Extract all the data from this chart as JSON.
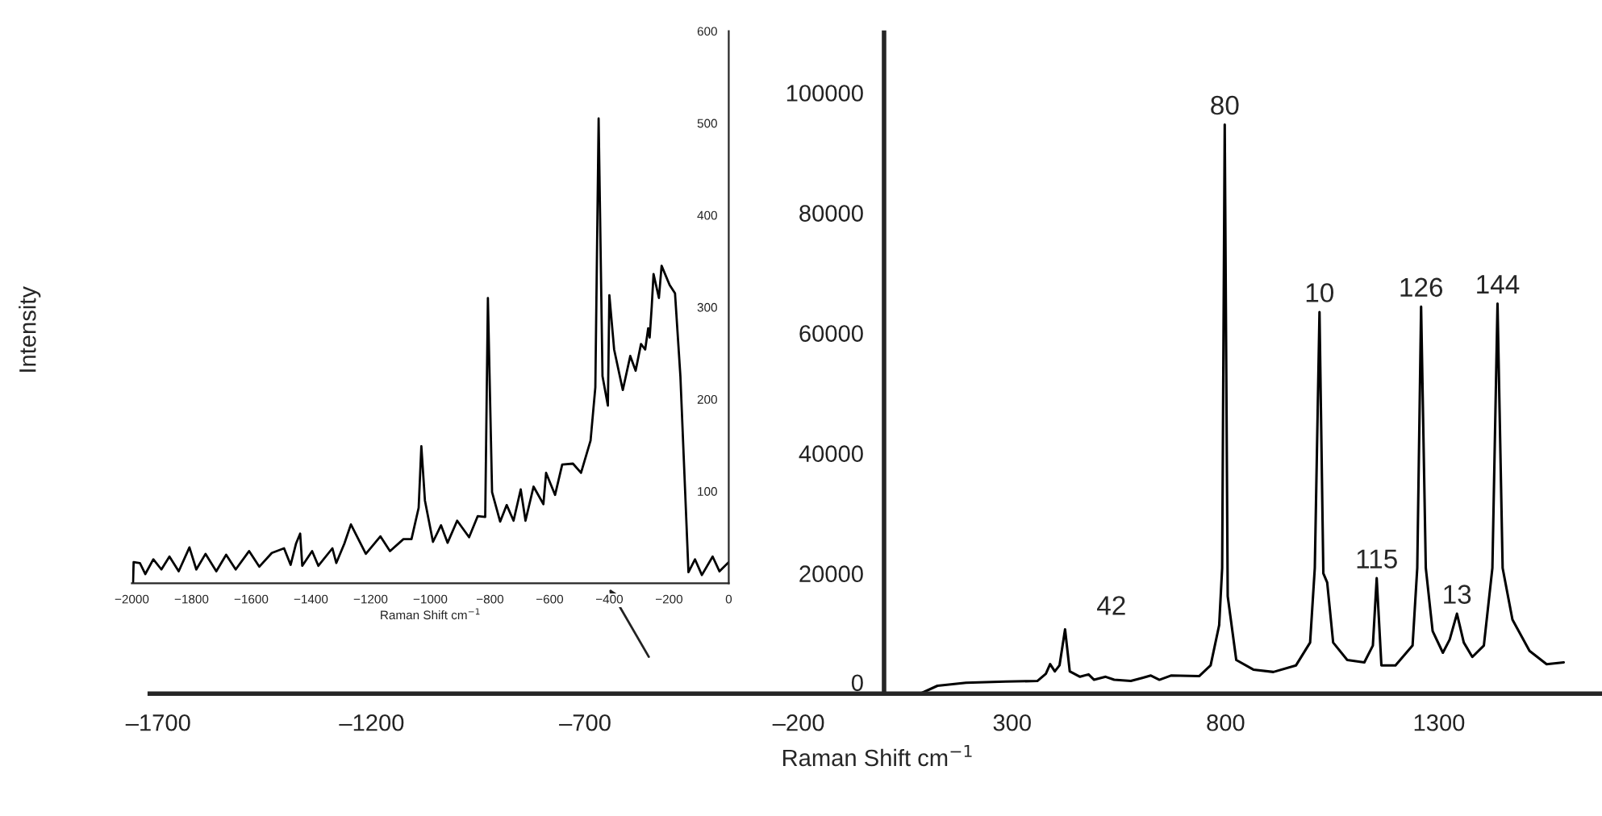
{
  "chart_data": [
    {
      "type": "line",
      "xlabel": "Raman Shift cm$^{−1}$",
      "ylabel": "Intensity",
      "xlim": [
        -1720,
        1690
      ],
      "ylim": [
        0,
        110000
      ],
      "xticks": [
        {
          "value": -1700,
          "label": "–1700"
        },
        {
          "value": -1200,
          "label": "–1200"
        },
        {
          "value": -700,
          "label": "–700"
        },
        {
          "value": -200,
          "label": "–200"
        },
        300,
        800,
        1300
      ],
      "yticks": [
        0,
        20000,
        40000,
        60000,
        80000,
        100000
      ],
      "grid": false,
      "marker": "none",
      "line_style": "solid",
      "series": [
        {
          "color": "#000000",
          "x": [
            85,
            125,
            192,
            285,
            359,
            379,
            389,
            400,
            411,
            424,
            435,
            459,
            479,
            492,
            519,
            539,
            578,
            605,
            625,
            645,
            672,
            738,
            765,
            785,
            792,
            798,
            805,
            825,
            865,
            912,
            965,
            998,
            1009,
            1020,
            1029,
            1038,
            1052,
            1085,
            1125,
            1145,
            1154,
            1165,
            1198,
            1238,
            1249,
            1258,
            1269,
            1285,
            1309,
            1325,
            1342,
            1358,
            1378,
            1405,
            1425,
            1437,
            1449,
            1472,
            1512,
            1552,
            1592
          ],
          "values": [
            0,
            1300,
            1800,
            2000,
            2100,
            3300,
            4900,
            3700,
            4700,
            10700,
            3700,
            2800,
            3200,
            2300,
            2800,
            2300,
            2100,
            2600,
            3000,
            2300,
            3000,
            2900,
            4700,
            11400,
            20900,
            94700,
            16200,
            5600,
            4000,
            3600,
            4700,
            8500,
            20900,
            63500,
            20000,
            18500,
            8500,
            5600,
            5200,
            8000,
            19200,
            4700,
            4700,
            8000,
            20900,
            64400,
            20900,
            10400,
            6800,
            9000,
            13300,
            8500,
            6100,
            8000,
            20900,
            64900,
            20900,
            12300,
            7100,
            4900,
            5200
          ]
        }
      ],
      "annotations": [
        {
          "text": "42",
          "x": 424,
          "y": 10700
        },
        {
          "text": "80",
          "x": 798,
          "y": 94700
        },
        {
          "text": "10",
          "x": 1020,
          "y": 63500
        },
        {
          "text": "115",
          "x": 1154,
          "y": 19200
        },
        {
          "text": "126",
          "x": 1258,
          "y": 64400
        },
        {
          "text": "13",
          "x": 1342,
          "y": 13300
        },
        {
          "text": "144",
          "x": 1437,
          "y": 64900
        }
      ]
    },
    {
      "type": "line",
      "xlabel": "Raman Shift cm$^{−1}$",
      "xlim": [
        -2000,
        0
      ],
      "ylim": [
        0,
        600
      ],
      "xticks": [
        {
          "value": -2000,
          "label": "−2000"
        },
        {
          "value": -1800,
          "label": "−1800"
        },
        {
          "value": -1600,
          "label": "−1600"
        },
        {
          "value": -1400,
          "label": "−1400"
        },
        {
          "value": -1200,
          "label": "−1200"
        },
        {
          "value": -1000,
          "label": "−1000"
        },
        {
          "value": -800,
          "label": "−800"
        },
        {
          "value": -600,
          "label": "−600"
        },
        {
          "value": -400,
          "label": "−400"
        },
        {
          "value": -200,
          "label": "−200"
        },
        0
      ],
      "yticks": [
        100,
        200,
        300,
        400,
        500,
        600
      ],
      "grid": false,
      "marker": "none",
      "line_style": "solid",
      "series": [
        {
          "color": "#000000",
          "x": [
            -1996,
            -1994,
            -1973,
            -1955,
            -1928,
            -1901,
            -1874,
            -1843,
            -1807,
            -1784,
            -1753,
            -1717,
            -1684,
            -1652,
            -1607,
            -1573,
            -1531,
            -1490,
            -1468,
            -1450,
            -1436,
            -1429,
            -1396,
            -1375,
            -1328,
            -1315,
            -1288,
            -1266,
            -1216,
            -1167,
            -1135,
            -1090,
            -1063,
            -1039,
            -1030,
            -1018,
            -991,
            -964,
            -942,
            -910,
            -870,
            -841,
            -816,
            -807,
            -793,
            -766,
            -744,
            -721,
            -697,
            -681,
            -654,
            -621,
            -612,
            -582,
            -558,
            -522,
            -495,
            -463,
            -447,
            -436,
            -423,
            -405,
            -400,
            -384,
            -355,
            -330,
            -312,
            -294,
            -280,
            -270,
            -265,
            -258,
            -252,
            -234,
            -225,
            -198,
            -180,
            -162,
            -135,
            -113,
            -90,
            -54,
            -31,
            0
          ],
          "values": [
            0,
            23,
            22,
            10,
            26,
            15,
            29,
            13,
            39,
            15,
            32,
            13,
            31,
            15,
            35,
            18,
            33,
            38,
            20,
            43,
            54,
            19,
            35,
            19,
            38,
            22,
            43,
            64,
            32,
            51,
            35,
            48,
            48,
            82,
            149,
            90,
            45,
            63,
            44,
            68,
            50,
            73,
            72,
            310,
            99,
            67,
            85,
            68,
            102,
            68,
            105,
            86,
            120,
            96,
            129,
            130,
            120,
            155,
            213,
            505,
            225,
            193,
            313,
            254,
            210,
            247,
            231,
            260,
            254,
            277,
            267,
            301,
            336,
            310,
            345,
            324,
            315,
            225,
            12,
            26,
            9,
            29,
            13,
            23
          ]
        }
      ]
    }
  ]
}
